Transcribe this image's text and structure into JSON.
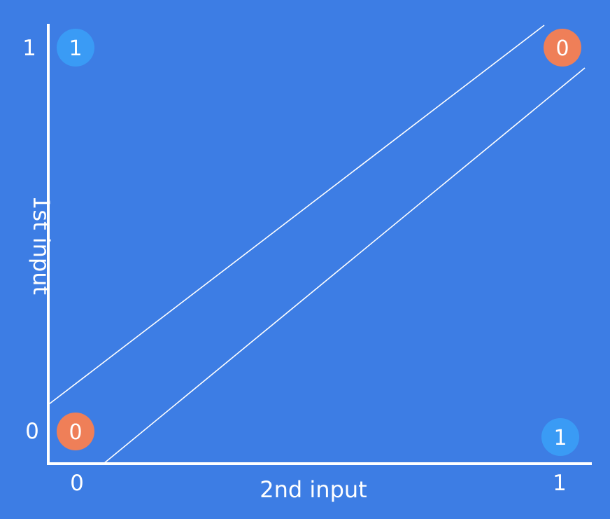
{
  "colors": {
    "background": "#3d7de4",
    "axis": "#ffffff",
    "class_one": "#3a9bf5",
    "class_zero": "#ef7f58",
    "text": "#ffffff"
  },
  "axes": {
    "x_label": "2nd input",
    "y_label": "1st input",
    "x_ticks": [
      "0",
      "1"
    ],
    "y_ticks": [
      "0",
      "1"
    ]
  },
  "points": [
    {
      "first_input": 1,
      "second_input": 0,
      "output": "1",
      "color": "#3a9bf5"
    },
    {
      "first_input": 1,
      "second_input": 1,
      "output": "0",
      "color": "#ef7f58"
    },
    {
      "first_input": 0,
      "second_input": 0,
      "output": "0",
      "color": "#ef7f58"
    },
    {
      "first_input": 0,
      "second_input": 1,
      "output": "1",
      "color": "#3a9bf5"
    }
  ]
}
